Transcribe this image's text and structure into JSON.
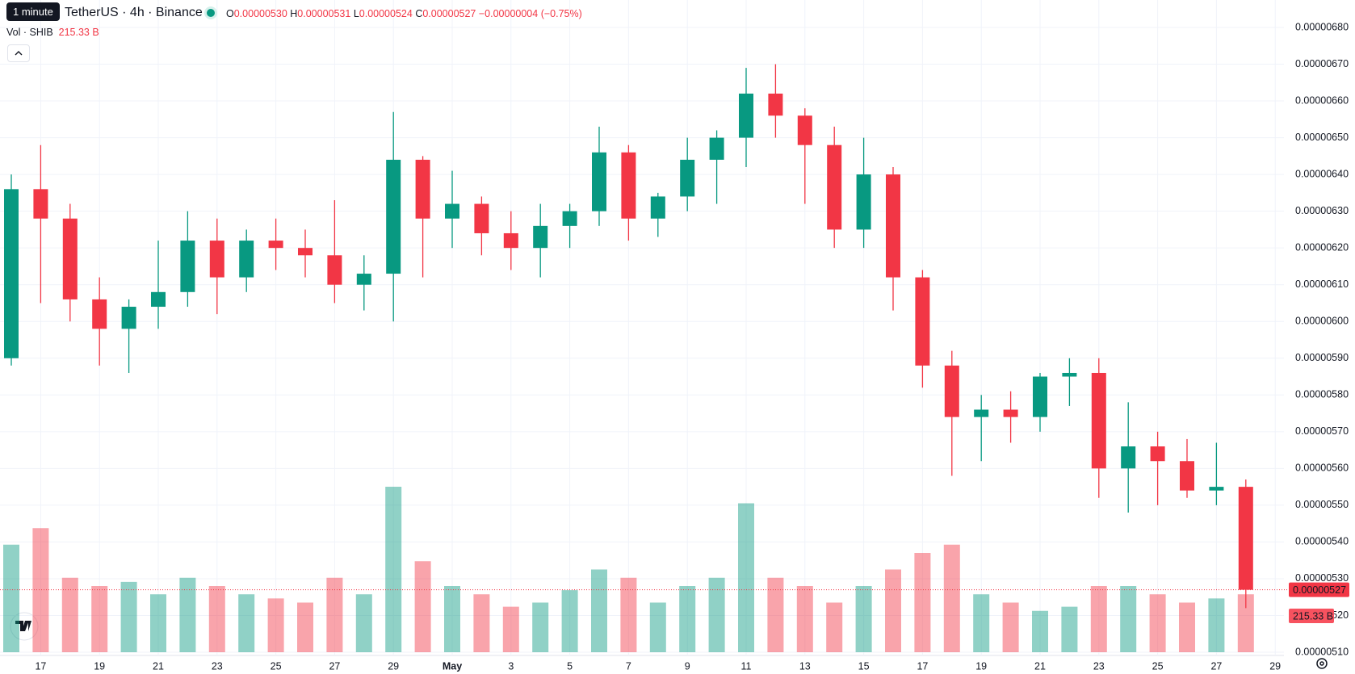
{
  "header": {
    "tooltip": "1 minute",
    "symbol": "TetherUS · 4h · Binance",
    "open_label": "O",
    "open": "0.00000530",
    "high_label": "H",
    "high": "0.00000531",
    "low_label": "L",
    "low": "0.00000524",
    "close_label": "C",
    "close": "0.00000527",
    "change": "−0.00000004 (−0.75%)",
    "volume_label": "Vol · SHIB",
    "volume": "215.33 B"
  },
  "chart_data": {
    "type": "candlestick",
    "categories": [
      null,
      "17",
      null,
      "19",
      null,
      "21",
      null,
      "23",
      null,
      "25",
      null,
      "27",
      null,
      "29",
      null,
      "May",
      null,
      "3",
      null,
      "5",
      null,
      "7",
      null,
      "9",
      null,
      "11",
      null,
      "13",
      null,
      "15",
      null,
      "17",
      null,
      "19",
      null,
      "21",
      null,
      "23",
      null,
      "25",
      null,
      "27",
      null,
      "29"
    ],
    "open": [
      5.9e-06,
      6.36e-06,
      6.28e-06,
      6.06e-06,
      5.98e-06,
      6.04e-06,
      6.08e-06,
      6.22e-06,
      6.12e-06,
      6.22e-06,
      6.2e-06,
      6.18e-06,
      6.1e-06,
      6.13e-06,
      6.44e-06,
      6.28e-06,
      6.32e-06,
      6.24e-06,
      6.2e-06,
      6.26e-06,
      6.3e-06,
      6.46e-06,
      6.28e-06,
      6.34e-06,
      6.44e-06,
      6.5e-06,
      6.62e-06,
      6.56e-06,
      6.48e-06,
      6.25e-06,
      6.4e-06,
      6.12e-06,
      5.88e-06,
      5.74e-06,
      5.76e-06,
      5.74e-06,
      5.85e-06,
      5.86e-06,
      5.6e-06,
      5.66e-06,
      5.62e-06,
      5.54e-06,
      5.55e-06,
      null
    ],
    "high": [
      6.4e-06,
      6.48e-06,
      6.32e-06,
      6.12e-06,
      6.06e-06,
      6.22e-06,
      6.3e-06,
      6.28e-06,
      6.25e-06,
      6.28e-06,
      6.25e-06,
      6.33e-06,
      6.18e-06,
      6.57e-06,
      6.45e-06,
      6.41e-06,
      6.34e-06,
      6.3e-06,
      6.32e-06,
      6.32e-06,
      6.53e-06,
      6.48e-06,
      6.35e-06,
      6.5e-06,
      6.52e-06,
      6.69e-06,
      6.7e-06,
      6.58e-06,
      6.53e-06,
      6.5e-06,
      6.42e-06,
      6.14e-06,
      5.92e-06,
      5.8e-06,
      5.81e-06,
      5.86e-06,
      5.9e-06,
      5.9e-06,
      5.78e-06,
      5.7e-06,
      5.68e-06,
      5.67e-06,
      5.57e-06,
      null
    ],
    "low": [
      5.88e-06,
      6.05e-06,
      6e-06,
      5.88e-06,
      5.86e-06,
      5.98e-06,
      6.04e-06,
      6.02e-06,
      6.08e-06,
      6.14e-06,
      6.12e-06,
      6.05e-06,
      6.03e-06,
      6e-06,
      6.12e-06,
      6.2e-06,
      6.18e-06,
      6.14e-06,
      6.12e-06,
      6.2e-06,
      6.26e-06,
      6.22e-06,
      6.23e-06,
      6.3e-06,
      6.32e-06,
      6.42e-06,
      6.5e-06,
      6.32e-06,
      6.2e-06,
      6.2e-06,
      6.03e-06,
      5.82e-06,
      5.58e-06,
      5.62e-06,
      5.67e-06,
      5.7e-06,
      5.77e-06,
      5.52e-06,
      5.48e-06,
      5.5e-06,
      5.52e-06,
      5.5e-06,
      5.22e-06,
      null
    ],
    "close": [
      6.36e-06,
      6.28e-06,
      6.06e-06,
      5.98e-06,
      6.04e-06,
      6.08e-06,
      6.22e-06,
      6.12e-06,
      6.22e-06,
      6.2e-06,
      6.18e-06,
      6.1e-06,
      6.13e-06,
      6.44e-06,
      6.28e-06,
      6.32e-06,
      6.24e-06,
      6.2e-06,
      6.26e-06,
      6.3e-06,
      6.46e-06,
      6.28e-06,
      6.34e-06,
      6.44e-06,
      6.5e-06,
      6.62e-06,
      6.56e-06,
      6.48e-06,
      6.25e-06,
      6.4e-06,
      6.12e-06,
      5.88e-06,
      5.74e-06,
      5.76e-06,
      5.74e-06,
      5.85e-06,
      5.86e-06,
      5.6e-06,
      5.66e-06,
      5.62e-06,
      5.54e-06,
      5.55e-06,
      5.27e-06,
      null
    ],
    "volume": [
      1300,
      1500,
      900,
      800,
      850,
      700,
      900,
      800,
      700,
      650,
      600,
      900,
      700,
      2000,
      1100,
      800,
      700,
      550,
      600,
      750,
      1000,
      900,
      600,
      800,
      900,
      1800,
      900,
      800,
      600,
      800,
      1000,
      1200,
      1300,
      700,
      600,
      500,
      550,
      800,
      800,
      700,
      600,
      650,
      700,
      null
    ],
    "ylim": [
      5.1e-06,
      6.8e-06
    ],
    "yticks": [
      {
        "value": 5.1e-06,
        "label": "0.00000510"
      },
      {
        "value": 5.2e-06,
        "label": "0.00000520"
      },
      {
        "value": 5.3e-06,
        "label": "0.00000530"
      },
      {
        "value": 5.4e-06,
        "label": "0.00000540"
      },
      {
        "value": 5.5e-06,
        "label": "0.00000550"
      },
      {
        "value": 5.6e-06,
        "label": "0.00000560"
      },
      {
        "value": 5.7e-06,
        "label": "0.00000570"
      },
      {
        "value": 5.8e-06,
        "label": "0.00000580"
      },
      {
        "value": 5.9e-06,
        "label": "0.00000590"
      },
      {
        "value": 6e-06,
        "label": "0.00000600"
      },
      {
        "value": 6.1e-06,
        "label": "0.00000610"
      },
      {
        "value": 6.2e-06,
        "label": "0.00000620"
      },
      {
        "value": 6.3e-06,
        "label": "0.00000630"
      },
      {
        "value": 6.4e-06,
        "label": "0.00000640"
      },
      {
        "value": 6.5e-06,
        "label": "0.00000650"
      },
      {
        "value": 6.6e-06,
        "label": "0.00000660"
      },
      {
        "value": 6.7e-06,
        "label": "0.00000670"
      },
      {
        "value": 6.8e-06,
        "label": "0.00000680"
      }
    ],
    "last_price": {
      "value": 5.27e-06,
      "label": "0.00000527"
    },
    "last_volume_label": "215.33 B",
    "up_color": "#089981",
    "down_color": "#f23645",
    "grid": true
  }
}
